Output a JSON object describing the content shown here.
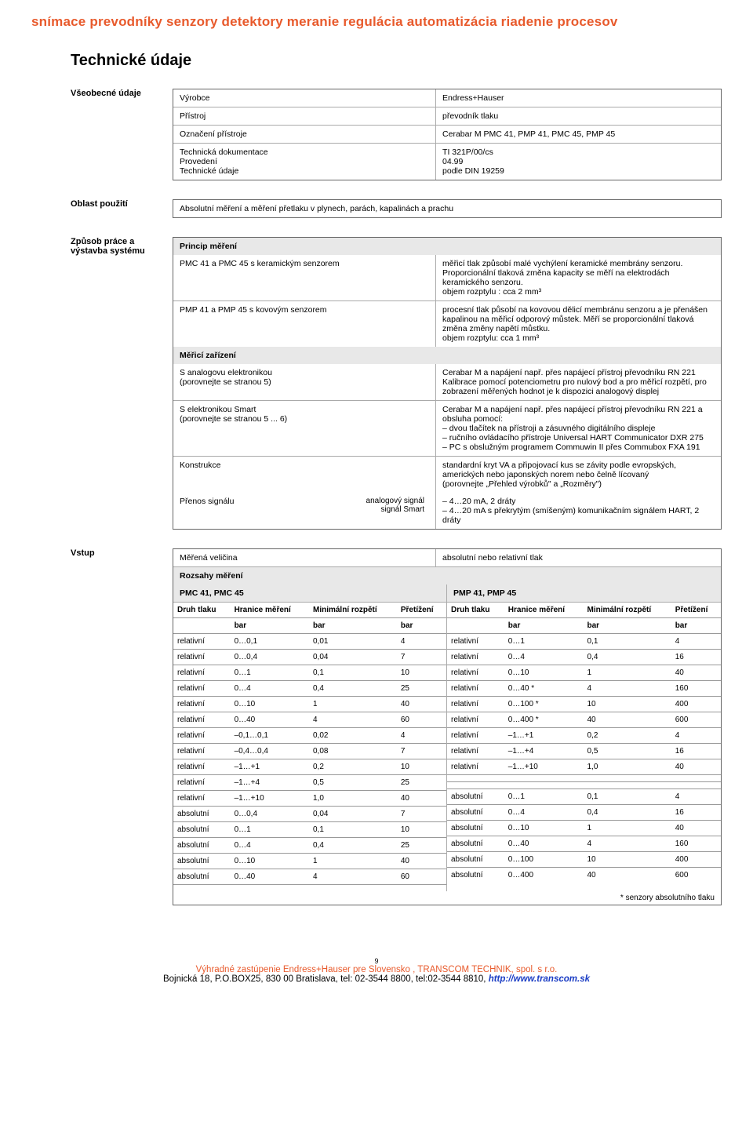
{
  "banner": "snímace prevodníky senzory detektory meranie regulácia automatizácia riadenie procesov",
  "section_title": "Technické údaje",
  "labels": {
    "general": "Všeobecné údaje",
    "usage": "Oblast použití",
    "working": "Způsob práce a výstavba systému",
    "input": "Vstup"
  },
  "general_rows": [
    {
      "l": "Výrobce",
      "r": "Endress+Hauser"
    },
    {
      "l": "Přístroj",
      "r": "převodník tlaku"
    },
    {
      "l": "Označení přístroje",
      "r": "Cerabar M PMC 41, PMP 41, PMC 45, PMP 45"
    },
    {
      "l": "Technická dokumentace\nProvedení\nTechnické údaje",
      "r": "TI 321P/00/cs\n04.99\npodle DIN 19259"
    }
  ],
  "usage_text": "Absolutní měření a měření přetlaku v plynech, parách, kapalinách a prachu",
  "working": {
    "principle_header": "Princip měření",
    "rows": [
      {
        "l": "PMC 41 a PMC 45 s keramickým senzorem",
        "r": "měřicí tlak způsobí malé vychýlení keramické membrány senzoru. Proporcionální tlaková změna kapacity se měří na elektrodách keramického senzoru.\nobjem rozptylu : cca 2 mm³"
      },
      {
        "l": "PMP 41 a PMP 45 s kovovým senzorem",
        "r": "procesní tlak působí na kovovou dělicí membránu senzoru a je přenášen kapalinou na měřicí odporový můstek. Měří se proporcionální tlaková změna změny napětí můstku.\nobjem rozptylu: cca 1 mm³"
      }
    ],
    "device_header": "Měřicí zařízení",
    "device_rows": [
      {
        "l": "S analogovu elektronikou\n(porovnejte se stranou 5)",
        "r": "Cerabar M a napájení např. přes napájecí přístroj převodníku RN 221\nKalibrace pomocí potenciometru pro nulový bod a pro měřicí rozpětí, pro zobrazení měřených hodnot je k dispozici analogový displej"
      },
      {
        "l": "S elektronikou Smart\n(porovnejte se stranou 5 ... 6)",
        "r": "Cerabar M a napájení např. přes napájecí přístroj převodníku RN 221 a obsluha pomocí:\n– dvou tlačítek na přístroji a zásuvného digitálního displeje\n– ručního ovládacího přístroje Universal HART Communicator DXR 275\n– PC s obslužným programem Commuwin II přes Commubox FXA 191"
      },
      {
        "l": "Konstrukce",
        "r": "standardní kryt VA a připojovací kus se závity podle evropských, amerických nebo japonských norem nebo čelně lícovaný\n(porovnejte „Přehled výrobků\" a „Rozměry\")"
      }
    ],
    "signal_row": {
      "l": "Přenos signálu",
      "mid": "analogový signál\nsignál Smart",
      "r": "– 4…20 mA, 2 dráty\n– 4…20 mA s překrytým (smíšeným) komunikačním signálem HART, 2 dráty"
    }
  },
  "input": {
    "measured_label": "Měřená veličina",
    "measured_value": "absolutní nebo relativní tlak",
    "ranges_header": "Rozsahy měření",
    "left_header": "PMC 41, PMC 45",
    "right_header": "PMP 41, PMP 45",
    "col_labels": {
      "type": "Druh tlaku",
      "limits": "Hranice měření",
      "minspan": "Minimální rozpětí",
      "overload": "Přetížení",
      "unit": "bar"
    },
    "left_rows": [
      [
        "relativní",
        "0…0,1",
        "0,01",
        "4"
      ],
      [
        "relativní",
        "0…0,4",
        "0,04",
        "7"
      ],
      [
        "relativní",
        "0…1",
        "0,1",
        "10"
      ],
      [
        "relativní",
        "0…4",
        "0,4",
        "25"
      ],
      [
        "relativní",
        "0…10",
        "1",
        "40"
      ],
      [
        "relativní",
        "0…40",
        "4",
        "60"
      ],
      [
        "relativní",
        "–0,1…0,1",
        "0,02",
        "4"
      ],
      [
        "relativní",
        "–0,4…0,4",
        "0,08",
        "7"
      ],
      [
        "relativní",
        "–1…+1",
        "0,2",
        "10"
      ],
      [
        "relativní",
        "–1…+4",
        "0,5",
        "25"
      ],
      [
        "relativní",
        "–1…+10",
        "1,0",
        "40"
      ],
      [
        "absolutní",
        "0…0,4",
        "0,04",
        "7"
      ],
      [
        "absolutní",
        "0…1",
        "0,1",
        "10"
      ],
      [
        "absolutní",
        "0…4",
        "0,4",
        "25"
      ],
      [
        "absolutní",
        "0…10",
        "1",
        "40"
      ],
      [
        "absolutní",
        "0…40",
        "4",
        "60"
      ],
      [
        "",
        "",
        "",
        ""
      ]
    ],
    "right_rows": [
      [
        "relativní",
        "0…1",
        "0,1",
        "4"
      ],
      [
        "relativní",
        "0…4",
        "0,4",
        "16"
      ],
      [
        "relativní",
        "0…10",
        "1",
        "40"
      ],
      [
        "relativní",
        "0…40 *",
        "4",
        "160"
      ],
      [
        "relativní",
        "0…100 *",
        "10",
        "400"
      ],
      [
        "relativní",
        "0…400 *",
        "40",
        "600"
      ],
      [
        "relativní",
        "–1…+1",
        "0,2",
        "4"
      ],
      [
        "relativní",
        "–1…+4",
        "0,5",
        "16"
      ],
      [
        "relativní",
        "–1…+10",
        "1,0",
        "40"
      ],
      [
        "",
        "",
        "",
        ""
      ],
      [
        "",
        "",
        "",
        ""
      ],
      [
        "absolutní",
        "0…1",
        "0,1",
        "4"
      ],
      [
        "absolutní",
        "0…4",
        "0,4",
        "16"
      ],
      [
        "absolutní",
        "0…10",
        "1",
        "40"
      ],
      [
        "absolutní",
        "0…40",
        "4",
        "160"
      ],
      [
        "absolutní",
        "0…100",
        "10",
        "400"
      ],
      [
        "absolutní",
        "0…400",
        "40",
        "600"
      ]
    ],
    "footnote": "* senzory absolutního tlaku"
  },
  "footer": {
    "page_num": "9",
    "line1_a": "Výhradné zastúpenie Endress+Hauser pre Slovensko , TRANSCOM TECHNIK, spol. s r.o.",
    "line2": "Bojnická 18, P.O.BOX25, 830 00 Bratislava, tel: 02-3544 8800, tel:02-3544 8810, ",
    "url": "http://www.transcom.sk"
  }
}
